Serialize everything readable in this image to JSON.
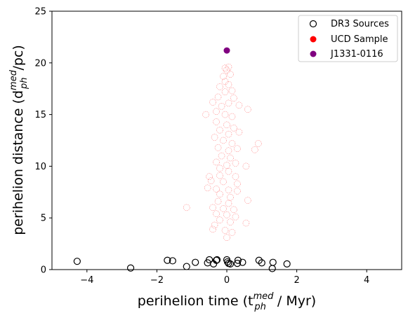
{
  "chart_data": {
    "type": "scatter",
    "xlabel": "perihelion time (t",
    "xlabel_sup": "med",
    "xlabel_sub": "ph",
    "xlabel_tail": " / Myr)",
    "ylabel": "perihelion distance (d",
    "ylabel_sup": "med",
    "ylabel_sub": "ph",
    "ylabel_tail": "/pc)",
    "xlim": [
      -5,
      5
    ],
    "ylim": [
      0,
      25
    ],
    "xticks": [
      -4,
      -2,
      0,
      2,
      4
    ],
    "yticks": [
      0,
      5,
      10,
      15,
      20,
      25
    ],
    "xtick_labels": [
      "−4",
      "−2",
      "0",
      "2",
      "4"
    ],
    "ytick_labels": [
      "0",
      "5",
      "10",
      "15",
      "20",
      "25"
    ],
    "grid": false,
    "legend_position": "top-right",
    "series": [
      {
        "name": "DR3 Sources",
        "marker": "hollow-circle",
        "color": "#000000",
        "points": [
          [
            -4.28,
            0.8
          ],
          [
            -2.75,
            0.15
          ],
          [
            -1.7,
            0.9
          ],
          [
            -1.55,
            0.85
          ],
          [
            -1.15,
            0.3
          ],
          [
            -0.9,
            0.7
          ],
          [
            -0.55,
            0.65
          ],
          [
            -0.5,
            0.95
          ],
          [
            -0.38,
            0.55
          ],
          [
            -0.3,
            0.9
          ],
          [
            -0.28,
            0.95
          ],
          [
            0.0,
            0.95
          ],
          [
            0.02,
            0.75
          ],
          [
            0.05,
            0.6
          ],
          [
            0.1,
            0.55
          ],
          [
            0.3,
            0.6
          ],
          [
            0.32,
            0.9
          ],
          [
            0.45,
            0.7
          ],
          [
            0.92,
            0.9
          ],
          [
            1.0,
            0.65
          ],
          [
            1.3,
            0.1
          ],
          [
            1.32,
            0.7
          ],
          [
            1.72,
            0.55
          ]
        ]
      },
      {
        "name": "UCD Sample",
        "marker": "hollow-circle-faint",
        "color": "#ff0000",
        "points": [
          [
            -0.05,
            19.5
          ],
          [
            0.0,
            19.3
          ],
          [
            0.05,
            19.6
          ],
          [
            -0.1,
            18.7
          ],
          [
            -0.05,
            18.2
          ],
          [
            0.1,
            18.9
          ],
          [
            -0.2,
            17.7
          ],
          [
            0.05,
            17.9
          ],
          [
            0.15,
            17.3
          ],
          [
            -0.25,
            16.7
          ],
          [
            -0.05,
            17.2
          ],
          [
            0.2,
            16.6
          ],
          [
            -0.4,
            16.2
          ],
          [
            -0.15,
            15.8
          ],
          [
            0.05,
            16.1
          ],
          [
            0.35,
            15.9
          ],
          [
            0.6,
            15.5
          ],
          [
            -0.3,
            15.3
          ],
          [
            -0.05,
            15.0
          ],
          [
            0.15,
            14.8
          ],
          [
            -0.6,
            15.0
          ],
          [
            -0.3,
            14.3
          ],
          [
            0.0,
            14.0
          ],
          [
            0.2,
            13.7
          ],
          [
            -0.2,
            13.5
          ],
          [
            0.05,
            13.1
          ],
          [
            0.35,
            13.3
          ],
          [
            -0.35,
            12.8
          ],
          [
            -0.1,
            12.5
          ],
          [
            0.15,
            12.2
          ],
          [
            0.9,
            12.2
          ],
          [
            -0.25,
            11.8
          ],
          [
            0.05,
            11.5
          ],
          [
            0.3,
            11.7
          ],
          [
            0.8,
            11.6
          ],
          [
            -0.15,
            11.0
          ],
          [
            0.1,
            10.8
          ],
          [
            -0.3,
            10.4
          ],
          [
            0.0,
            10.1
          ],
          [
            0.25,
            10.3
          ],
          [
            -0.2,
            9.8
          ],
          [
            0.55,
            10.0
          ],
          [
            0.05,
            9.5
          ],
          [
            -0.5,
            9.0
          ],
          [
            -0.2,
            9.1
          ],
          [
            0.25,
            9.0
          ],
          [
            -0.45,
            8.6
          ],
          [
            -0.1,
            8.5
          ],
          [
            0.3,
            8.3
          ],
          [
            -0.55,
            7.9
          ],
          [
            -0.3,
            7.8
          ],
          [
            0.05,
            7.7
          ],
          [
            0.3,
            7.6
          ],
          [
            -0.2,
            7.3
          ],
          [
            0.1,
            7.0
          ],
          [
            0.6,
            6.7
          ],
          [
            -0.25,
            6.6
          ],
          [
            0.05,
            6.4
          ],
          [
            -0.4,
            6.0
          ],
          [
            -0.1,
            5.9
          ],
          [
            0.2,
            5.8
          ],
          [
            -1.15,
            6.0
          ],
          [
            -0.3,
            5.4
          ],
          [
            0.0,
            5.3
          ],
          [
            0.25,
            5.1
          ],
          [
            -0.2,
            4.8
          ],
          [
            0.1,
            4.6
          ],
          [
            0.55,
            4.5
          ],
          [
            -0.35,
            4.3
          ],
          [
            -0.4,
            3.9
          ],
          [
            -0.05,
            3.8
          ],
          [
            0.0,
            3.1
          ],
          [
            0.15,
            3.6
          ]
        ]
      },
      {
        "name": "J1331-0116",
        "marker": "filled-circle",
        "color": "#800080",
        "points": [
          [
            0.0,
            21.2
          ]
        ]
      }
    ],
    "legend": [
      {
        "label": "DR3 Sources",
        "marker": "hollow-circle",
        "color": "#000000"
      },
      {
        "label": "UCD Sample",
        "marker": "filled-circle",
        "color": "#ff0000"
      },
      {
        "label": "J1331-0116",
        "marker": "filled-circle",
        "color": "#800080"
      }
    ]
  }
}
